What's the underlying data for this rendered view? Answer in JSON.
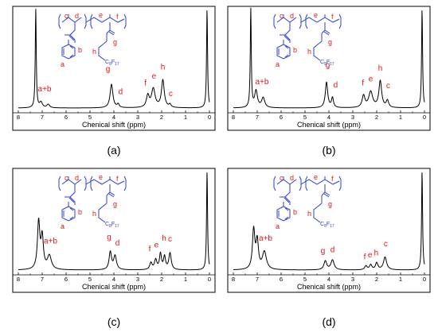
{
  "chart_data": [
    {
      "type": "line",
      "panel_caption": "(a)",
      "xlabel": "Chenical shift (ppm)",
      "x_ticks": [
        8,
        7,
        6,
        5,
        4,
        3,
        2,
        1,
        0
      ],
      "xlim": [
        8,
        0
      ],
      "series": [
        {
          "peaks": [
            {
              "x": 7.27,
              "height": 1.0,
              "width": 0.025
            },
            {
              "x": 7.05,
              "height": 0.055,
              "width": 0.07
            },
            {
              "x": 6.75,
              "height": 0.035,
              "width": 0.07
            },
            {
              "x": 4.1,
              "height": 0.24,
              "width": 0.07
            },
            {
              "x": 3.82,
              "height": 0.035,
              "width": 0.05
            },
            {
              "x": 2.58,
              "height": 0.12,
              "width": 0.07
            },
            {
              "x": 2.35,
              "height": 0.19,
              "width": 0.09
            },
            {
              "x": 1.95,
              "height": 0.28,
              "width": 0.07
            },
            {
              "x": 1.65,
              "height": 0.03,
              "width": 0.05
            },
            {
              "x": 0.1,
              "height": 1.0,
              "width": 0.025
            }
          ]
        }
      ],
      "peak_labels": [
        {
          "text": "a+b",
          "x": 6.9,
          "y": 0.17
        },
        {
          "text": "g",
          "x": 4.25,
          "y": 0.37
        },
        {
          "text": "d",
          "x": 3.72,
          "y": 0.14
        },
        {
          "text": "f",
          "x": 2.68,
          "y": 0.23
        },
        {
          "text": "e",
          "x": 2.32,
          "y": 0.3
        },
        {
          "text": "h",
          "x": 1.95,
          "y": 0.39
        },
        {
          "text": "c",
          "x": 1.62,
          "y": 0.12
        }
      ],
      "structure_labels": [
        "c",
        "d",
        "e",
        "f",
        "b",
        "a",
        "g",
        "h"
      ],
      "structure_text": [
        "C",
        "8",
        "F",
        "17"
      ]
    },
    {
      "type": "line",
      "panel_caption": "(b)",
      "xlabel": "Chenical shift (ppm)",
      "x_ticks": [
        8,
        7,
        6,
        5,
        4,
        3,
        2,
        1,
        0
      ],
      "xlim": [
        8,
        0
      ],
      "series": [
        {
          "peaks": [
            {
              "x": 7.27,
              "height": 1.0,
              "width": 0.025
            },
            {
              "x": 7.05,
              "height": 0.17,
              "width": 0.07
            },
            {
              "x": 6.75,
              "height": 0.1,
              "width": 0.08
            },
            {
              "x": 4.1,
              "height": 0.26,
              "width": 0.06
            },
            {
              "x": 3.85,
              "height": 0.1,
              "width": 0.05
            },
            {
              "x": 2.55,
              "height": 0.12,
              "width": 0.07
            },
            {
              "x": 2.25,
              "height": 0.16,
              "width": 0.1
            },
            {
              "x": 1.85,
              "height": 0.27,
              "width": 0.07
            },
            {
              "x": 1.55,
              "height": 0.07,
              "width": 0.06
            },
            {
              "x": 0.1,
              "height": 1.0,
              "width": 0.025
            }
          ]
        }
      ],
      "peak_labels": [
        {
          "text": "a+b",
          "x": 6.8,
          "y": 0.24
        },
        {
          "text": "g",
          "x": 4.05,
          "y": 0.41
        },
        {
          "text": "d",
          "x": 3.72,
          "y": 0.21
        },
        {
          "text": "f",
          "x": 2.58,
          "y": 0.23
        },
        {
          "text": "e",
          "x": 2.25,
          "y": 0.27
        },
        {
          "text": "h",
          "x": 1.85,
          "y": 0.38
        },
        {
          "text": "c",
          "x": 1.52,
          "y": 0.2
        }
      ],
      "structure_labels": [
        "c",
        "d",
        "e",
        "f",
        "b",
        "a",
        "g",
        "h"
      ],
      "structure_text": [
        "C",
        "8",
        "F",
        "17"
      ]
    },
    {
      "type": "line",
      "panel_caption": "(c)",
      "xlabel": "Chenical shift (ppm)",
      "x_ticks": [
        8,
        7,
        6,
        5,
        4,
        3,
        2,
        1,
        0
      ],
      "xlim": [
        8,
        0
      ],
      "series": [
        {
          "peaks": [
            {
              "x": 7.15,
              "height": 0.48,
              "width": 0.06
            },
            {
              "x": 7.0,
              "height": 0.32,
              "width": 0.06
            },
            {
              "x": 6.7,
              "height": 0.14,
              "width": 0.1
            },
            {
              "x": 4.15,
              "height": 0.18,
              "width": 0.06
            },
            {
              "x": 3.95,
              "height": 0.14,
              "width": 0.07
            },
            {
              "x": 2.45,
              "height": 0.07,
              "width": 0.06
            },
            {
              "x": 2.25,
              "height": 0.1,
              "width": 0.06
            },
            {
              "x": 2.05,
              "height": 0.16,
              "width": 0.05
            },
            {
              "x": 1.88,
              "height": 0.13,
              "width": 0.05
            },
            {
              "x": 1.65,
              "height": 0.17,
              "width": 0.06
            },
            {
              "x": 0.1,
              "height": 1.0,
              "width": 0.025
            }
          ]
        }
      ],
      "peak_labels": [
        {
          "text": "a+b",
          "x": 6.65,
          "y": 0.27
        },
        {
          "text": "g",
          "x": 4.2,
          "y": 0.31
        },
        {
          "text": "d",
          "x": 3.85,
          "y": 0.25
        },
        {
          "text": "f",
          "x": 2.5,
          "y": 0.19
        },
        {
          "text": "e",
          "x": 2.22,
          "y": 0.23
        },
        {
          "text": "h",
          "x": 1.9,
          "y": 0.3
        },
        {
          "text": "c",
          "x": 1.65,
          "y": 0.29
        }
      ],
      "structure_labels": [
        "c",
        "d",
        "e",
        "f",
        "b",
        "a",
        "g",
        "h"
      ],
      "structure_text": [
        "C",
        "8",
        "F",
        "17"
      ]
    },
    {
      "type": "line",
      "panel_caption": "(d)",
      "xlabel": "Chenical shift (ppm)",
      "x_ticks": [
        8,
        7,
        6,
        5,
        4,
        3,
        2,
        1,
        0
      ],
      "xlim": [
        8,
        0
      ],
      "series": [
        {
          "peaks": [
            {
              "x": 7.15,
              "height": 0.4,
              "width": 0.06
            },
            {
              "x": 7.0,
              "height": 0.28,
              "width": 0.06
            },
            {
              "x": 6.7,
              "height": 0.18,
              "width": 0.1
            },
            {
              "x": 4.15,
              "height": 0.09,
              "width": 0.07
            },
            {
              "x": 3.85,
              "height": 0.1,
              "width": 0.08
            },
            {
              "x": 2.45,
              "height": 0.04,
              "width": 0.06
            },
            {
              "x": 2.25,
              "height": 0.05,
              "width": 0.06
            },
            {
              "x": 2.0,
              "height": 0.07,
              "width": 0.06
            },
            {
              "x": 1.65,
              "height": 0.13,
              "width": 0.08
            },
            {
              "x": 0.1,
              "height": 1.0,
              "width": 0.025
            }
          ]
        }
      ],
      "peak_labels": [
        {
          "text": "a+b",
          "x": 6.65,
          "y": 0.3
        },
        {
          "text": "g",
          "x": 4.25,
          "y": 0.17
        },
        {
          "text": "d",
          "x": 3.85,
          "y": 0.18
        },
        {
          "text": "f",
          "x": 2.5,
          "y": 0.11
        },
        {
          "text": "e",
          "x": 2.28,
          "y": 0.13
        },
        {
          "text": "h",
          "x": 2.02,
          "y": 0.15
        },
        {
          "text": "c",
          "x": 1.62,
          "y": 0.24
        }
      ],
      "structure_labels": [
        "c",
        "d",
        "e",
        "f",
        "b",
        "a",
        "g",
        "h"
      ],
      "structure_text": [
        "C",
        "8",
        "F",
        "17"
      ]
    }
  ],
  "colors": {
    "structure": "#2b3fd8",
    "peak_label": "#e8141c",
    "spectrum": "#000000"
  }
}
